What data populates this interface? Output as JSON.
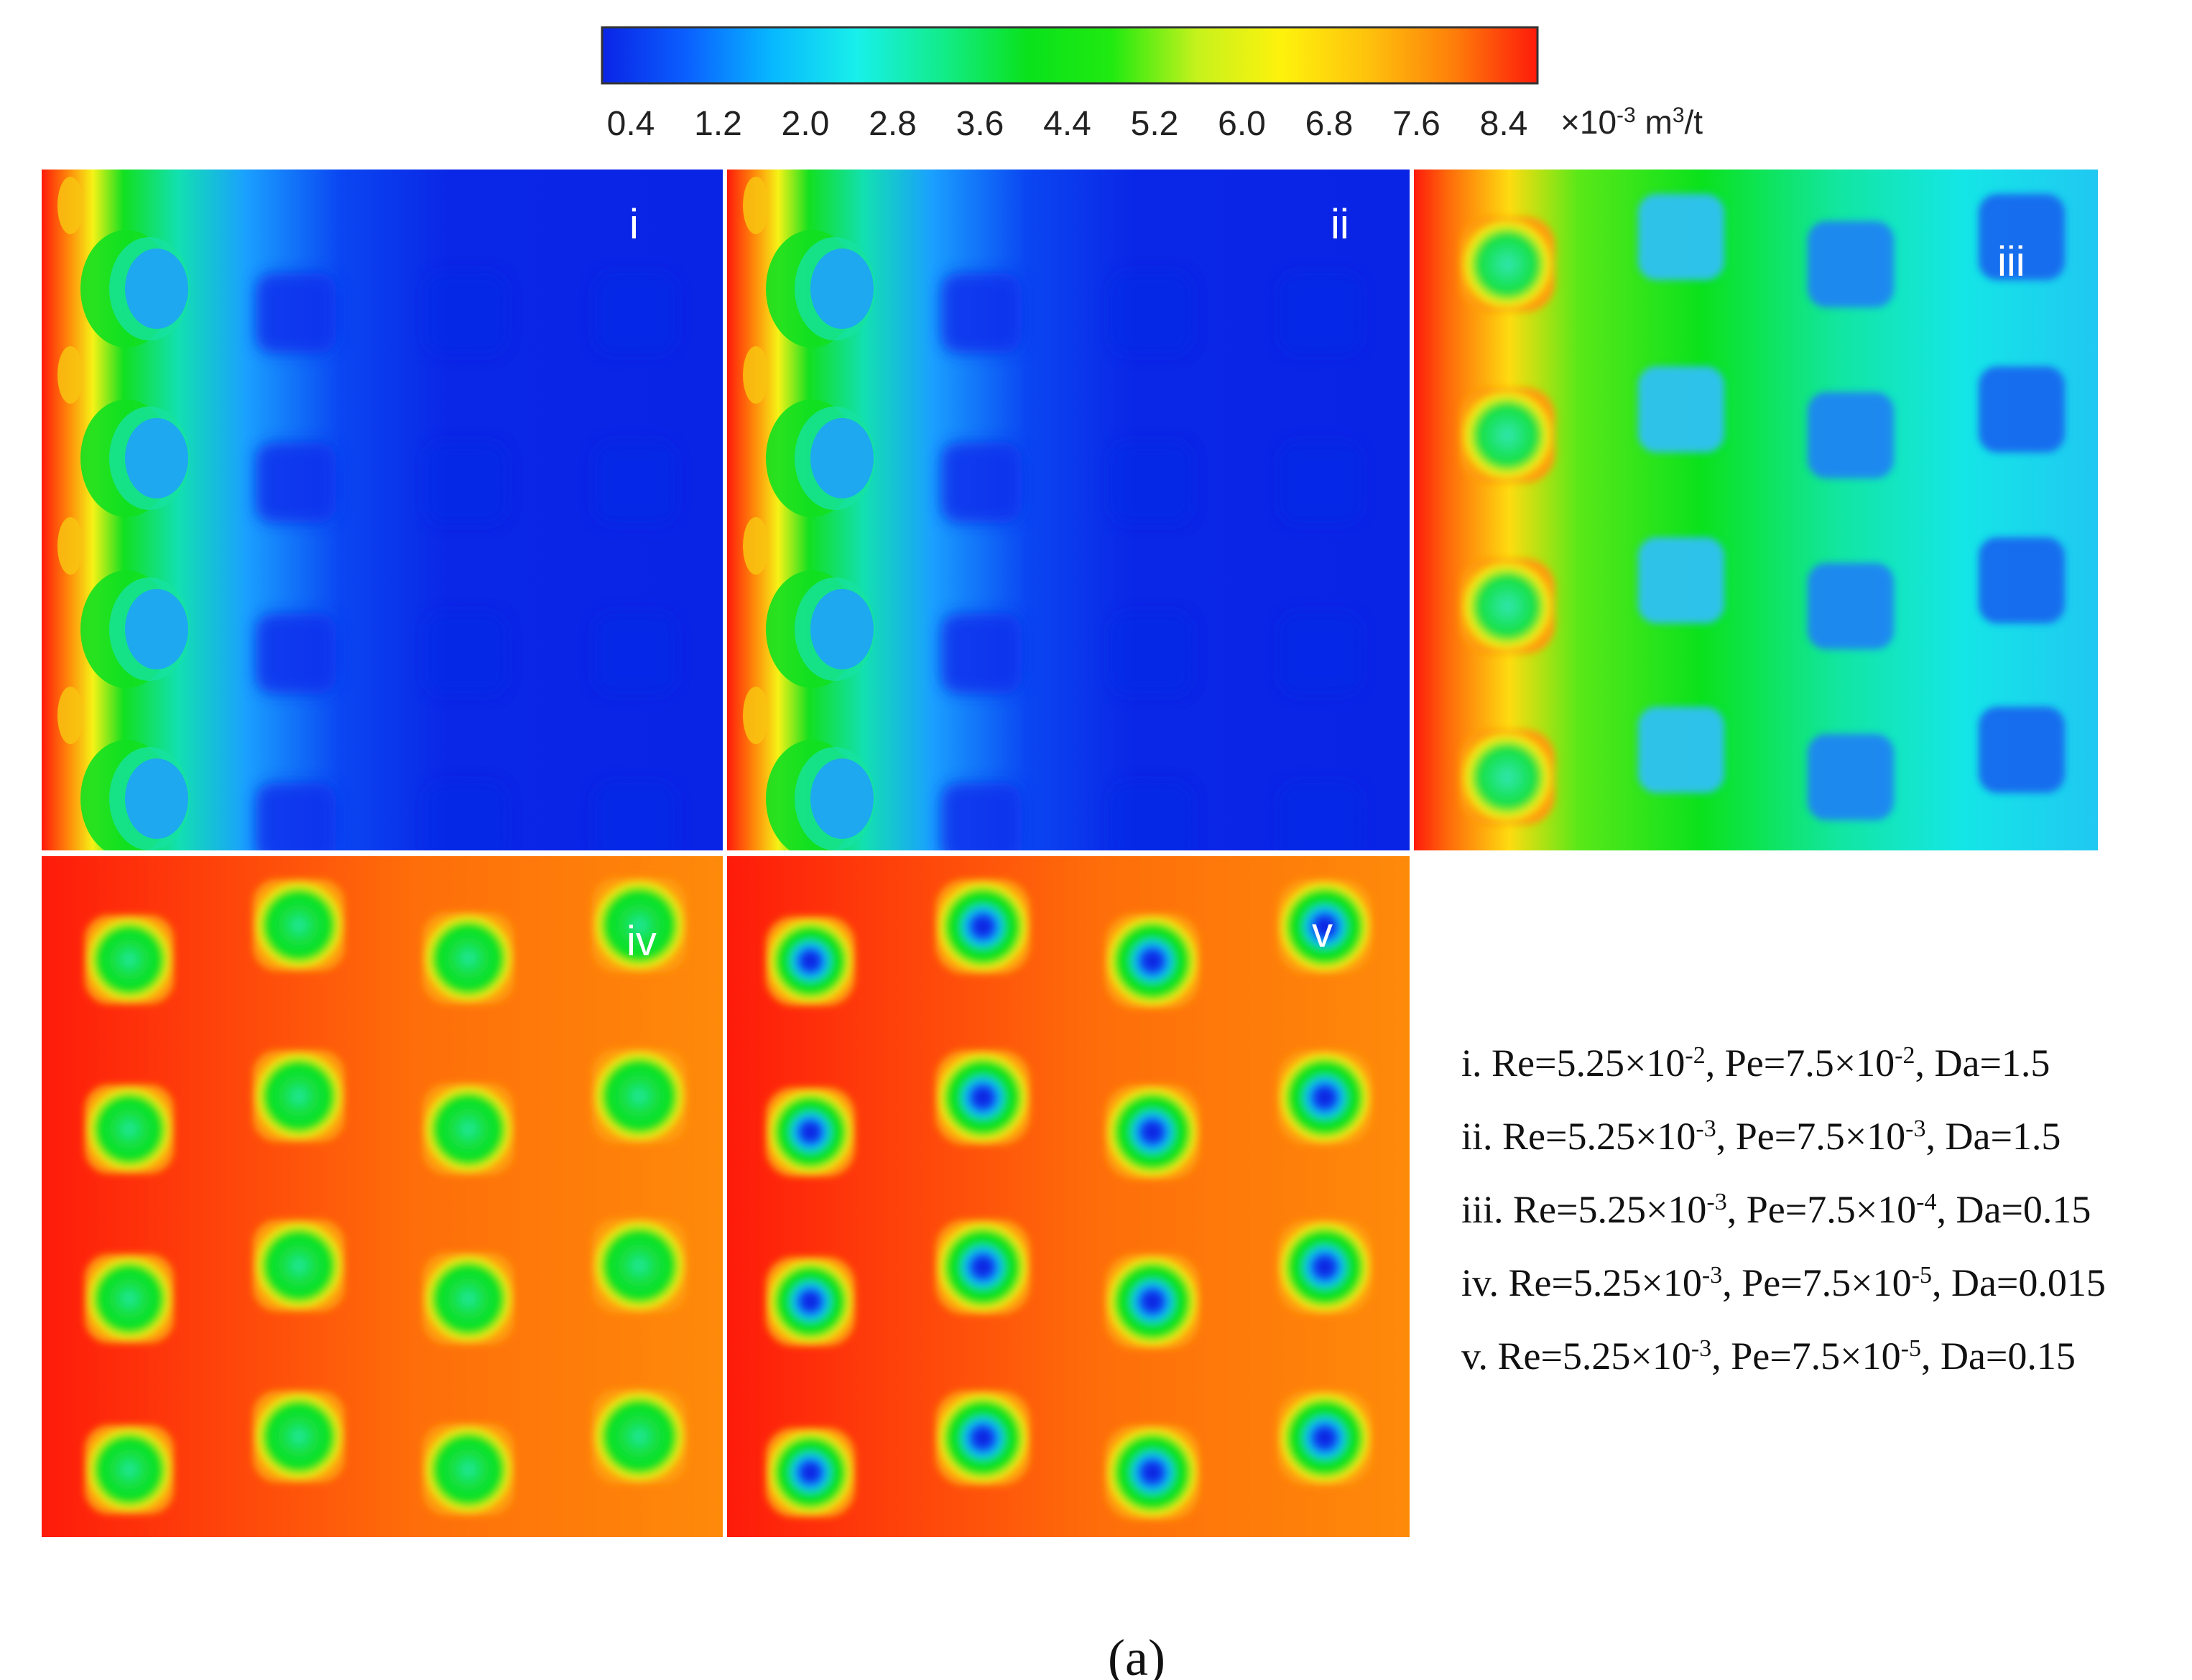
{
  "colorbar": {
    "ticks": [
      "0.4",
      "1.2",
      "2.0",
      "2.8",
      "3.6",
      "4.4",
      "5.2",
      "6.0",
      "6.8",
      "7.6",
      "8.4"
    ],
    "unit_prefix": "×10",
    "unit_exp": "-3",
    "unit_m": " m",
    "unit_m_exp": "3",
    "unit_tail": "/t",
    "stops": [
      "#0a24e6",
      "#0a60ff",
      "#08b8ff",
      "#18f0ea",
      "#12ec8a",
      "#0ae21c",
      "#20ea10",
      "#c6f21c",
      "#fef20c",
      "#fec20c",
      "#fe800a",
      "#fe1a0a"
    ]
  },
  "panels": [
    {
      "id": "i",
      "label": "i"
    },
    {
      "id": "ii",
      "label": "ii"
    },
    {
      "id": "iii",
      "label": "iii"
    },
    {
      "id": "iv",
      "label": "iv"
    },
    {
      "id": "v",
      "label": "v"
    }
  ],
  "legend": [
    {
      "prefix": "i. Re=5.25×10",
      "re_exp": "-2",
      "mid": ", Pe=7.5×10",
      "pe_exp": "-2",
      "tail": ", Da=1.5"
    },
    {
      "prefix": "ii. Re=5.25×10",
      "re_exp": "-3",
      "mid": ", Pe=7.5×10",
      "pe_exp": "-3",
      "tail": ", Da=1.5"
    },
    {
      "prefix": "iii. Re=5.25×10",
      "re_exp": "-3",
      "mid": ", Pe=7.5×10",
      "pe_exp": "-4",
      "tail": ", Da=0.15"
    },
    {
      "prefix": "iv. Re=5.25×10",
      "re_exp": "-3",
      "mid": ", Pe=7.5×10",
      "pe_exp": "-5",
      "tail": ", Da=0.015"
    },
    {
      "prefix": "v. Re=5.25×10",
      "re_exp": "-3",
      "mid": ", Pe=7.5×10",
      "pe_exp": "-5",
      "tail": ", Da=0.15"
    }
  ],
  "caption": "(a)"
}
